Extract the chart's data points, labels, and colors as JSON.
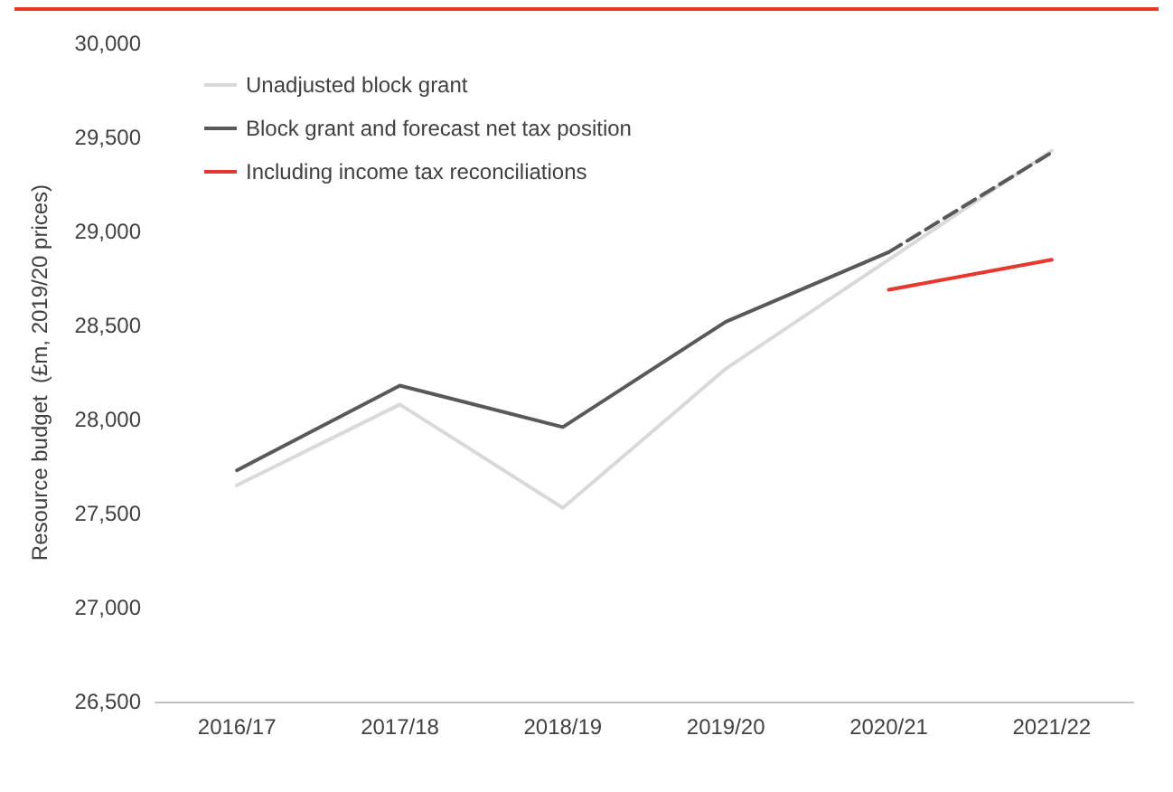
{
  "chart_data": {
    "type": "line",
    "ylabel": "Resource budget  (£m, 2019/20 prices)",
    "categories": [
      "2016/17",
      "2017/18",
      "2018/19",
      "2019/20",
      "2020/21",
      "2021/22"
    ],
    "series": [
      {
        "name": "Unadjusted block grant",
        "color": "#d9d9d9",
        "values": [
          27650,
          28080,
          27530,
          28270,
          28850,
          29430
        ]
      },
      {
        "name": "Block grant and forecast net tax position",
        "color": "#595959",
        "values": [
          27730,
          28180,
          27960,
          28520,
          28890,
          null
        ]
      },
      {
        "color": "#595959",
        "line_style": "dashed",
        "values": [
          null,
          null,
          null,
          null,
          28890,
          29420
        ]
      },
      {
        "name": "Including income tax reconciliations",
        "color": "#e8372c",
        "values": [
          null,
          null,
          null,
          null,
          28690,
          28850
        ]
      }
    ],
    "ylim": [
      26500,
      30000
    ],
    "yticks": [
      {
        "value": 26500,
        "label": "26,500"
      },
      {
        "value": 27000,
        "label": "27,000"
      },
      {
        "value": 27500,
        "label": "27,500"
      },
      {
        "value": 28000,
        "label": "28,000"
      },
      {
        "value": 28500,
        "label": "28,500"
      },
      {
        "value": 29000,
        "label": "29,000"
      },
      {
        "value": 29500,
        "label": "29,500"
      },
      {
        "value": 30000,
        "label": "30,000"
      }
    ],
    "grid": false,
    "legend": "top left",
    "marker": "none",
    "line_style": "solid"
  }
}
